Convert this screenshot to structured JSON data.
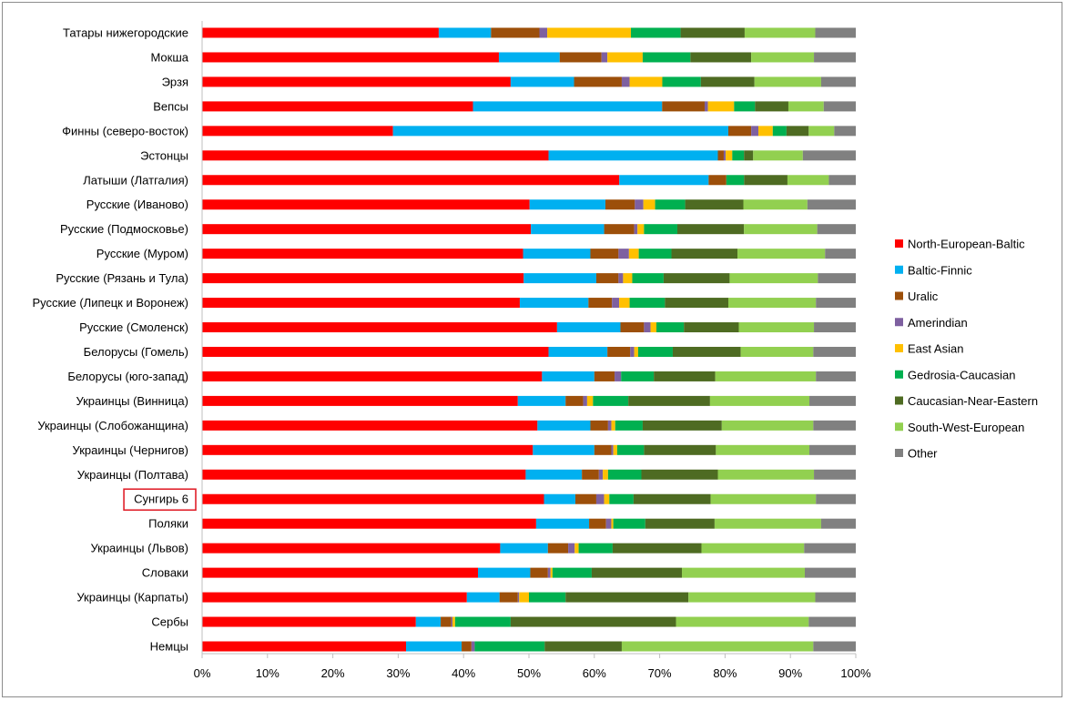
{
  "chart_data": {
    "type": "bar",
    "orientation": "horizontal",
    "stacked": true,
    "percent": true,
    "categories": [
      "Татары нижегородские",
      "Мокша",
      "Эрзя",
      "Вепсы",
      "Финны (северо-восток)",
      "Эстонцы",
      "Латыши (Латгалия)",
      "Русские (Иваново)",
      "Русские (Подмосковье)",
      "Русские (Муром)",
      "Русские (Рязань и Тула)",
      "Русские (Липецк и Воронеж)",
      "Русские (Смоленск)",
      "Белорусы (Гомель)",
      "Белорусы (юго-запад)",
      "Украинцы (Винница)",
      "Украинцы (Слобожанщина)",
      "Украинцы (Чернигов)",
      "Украинцы (Полтава)",
      "Сунгирь 6",
      "Поляки",
      "Украинцы (Львов)",
      "Словаки",
      "Украинцы (Карпаты)",
      "Сербы",
      "Немцы"
    ],
    "highlighted_category": "Сунгирь 6",
    "series": [
      {
        "name": "North-European-Baltic",
        "color": "#ff0000",
        "values": [
          36.2,
          45.4,
          47.2,
          41.4,
          29.2,
          53.0,
          63.5,
          50.1,
          50.3,
          49.1,
          49.2,
          48.6,
          54.3,
          53.0,
          52.0,
          48.3,
          51.3,
          50.6,
          49.5,
          52.3,
          51.1,
          45.6,
          42.2,
          40.5,
          32.7,
          31.2
        ]
      },
      {
        "name": "Baltic-Finnic",
        "color": "#00b0f0",
        "values": [
          8.0,
          9.3,
          9.7,
          28.9,
          51.3,
          25.9,
          13.6,
          11.6,
          11.2,
          10.3,
          11.1,
          10.5,
          9.7,
          9.0,
          8.0,
          7.3,
          8.1,
          9.4,
          8.6,
          4.8,
          8.1,
          7.3,
          8.0,
          5.0,
          3.8,
          8.5
        ]
      },
      {
        "name": "Uralic",
        "color": "#9c4f0a",
        "values": [
          7.4,
          6.4,
          7.3,
          6.5,
          3.5,
          0.9,
          2.7,
          4.5,
          4.6,
          4.3,
          3.4,
          3.6,
          3.6,
          3.5,
          3.1,
          2.7,
          2.7,
          2.6,
          2.6,
          3.2,
          2.6,
          3.1,
          2.7,
          2.8,
          1.6,
          1.5
        ]
      },
      {
        "name": "Amerindian",
        "color": "#7e60a0",
        "values": [
          1.2,
          0.9,
          1.2,
          0.5,
          1.1,
          0.3,
          0.0,
          1.3,
          0.5,
          1.6,
          0.7,
          1.1,
          1.0,
          0.6,
          1.0,
          0.6,
          0.5,
          0.3,
          0.6,
          1.2,
          0.8,
          1.0,
          0.4,
          0.2,
          0.2,
          0.5
        ]
      },
      {
        "name": "East Asian",
        "color": "#ffc000",
        "values": [
          12.8,
          5.4,
          5.0,
          4.0,
          2.2,
          1.0,
          0.0,
          1.8,
          1.0,
          1.5,
          1.4,
          1.6,
          0.9,
          0.6,
          0.0,
          0.9,
          0.6,
          0.6,
          0.8,
          0.8,
          0.3,
          0.6,
          0.3,
          1.5,
          0.4,
          0.0
        ]
      },
      {
        "name": "Gedrosia-Caucasian",
        "color": "#00b050",
        "values": [
          7.6,
          7.3,
          5.9,
          3.2,
          2.1,
          1.8,
          2.7,
          4.6,
          5.1,
          5.0,
          4.8,
          5.4,
          4.2,
          5.3,
          5.0,
          5.4,
          4.2,
          4.1,
          5.1,
          3.7,
          4.9,
          5.2,
          6.0,
          5.6,
          8.5,
          10.7
        ]
      },
      {
        "name": "Caucasian-Near-Eastern",
        "color": "#4e6b22",
        "values": [
          9.8,
          9.3,
          8.2,
          5.1,
          3.4,
          1.4,
          6.6,
          8.9,
          10.2,
          10.1,
          10.1,
          9.7,
          8.4,
          10.4,
          9.4,
          12.5,
          12.1,
          11.0,
          11.7,
          11.8,
          10.6,
          13.6,
          13.8,
          18.8,
          25.3,
          11.8
        ]
      },
      {
        "name": "South-West-European",
        "color": "#92d050",
        "values": [
          10.8,
          9.6,
          10.2,
          5.4,
          3.9,
          7.6,
          6.3,
          9.8,
          11.2,
          13.4,
          13.5,
          13.4,
          11.5,
          11.1,
          15.4,
          15.2,
          14.0,
          14.3,
          14.7,
          16.1,
          16.3,
          15.7,
          18.8,
          19.4,
          20.3,
          29.3
        ]
      },
      {
        "name": "Other",
        "color": "#808080",
        "values": [
          6.2,
          6.4,
          5.3,
          4.9,
          3.3,
          8.1,
          4.1,
          7.4,
          5.9,
          4.7,
          5.8,
          6.1,
          6.4,
          6.5,
          6.1,
          7.1,
          6.5,
          7.1,
          6.4,
          6.1,
          5.3,
          7.9,
          7.8,
          6.2,
          7.2,
          6.5
        ]
      }
    ],
    "x_ticks": [
      "0%",
      "10%",
      "20%",
      "30%",
      "40%",
      "50%",
      "60%",
      "70%",
      "80%",
      "90%",
      "100%"
    ],
    "xlim": [
      0,
      100
    ],
    "grid": false,
    "legend_position": "right",
    "title": "",
    "xlabel": "",
    "ylabel": ""
  }
}
